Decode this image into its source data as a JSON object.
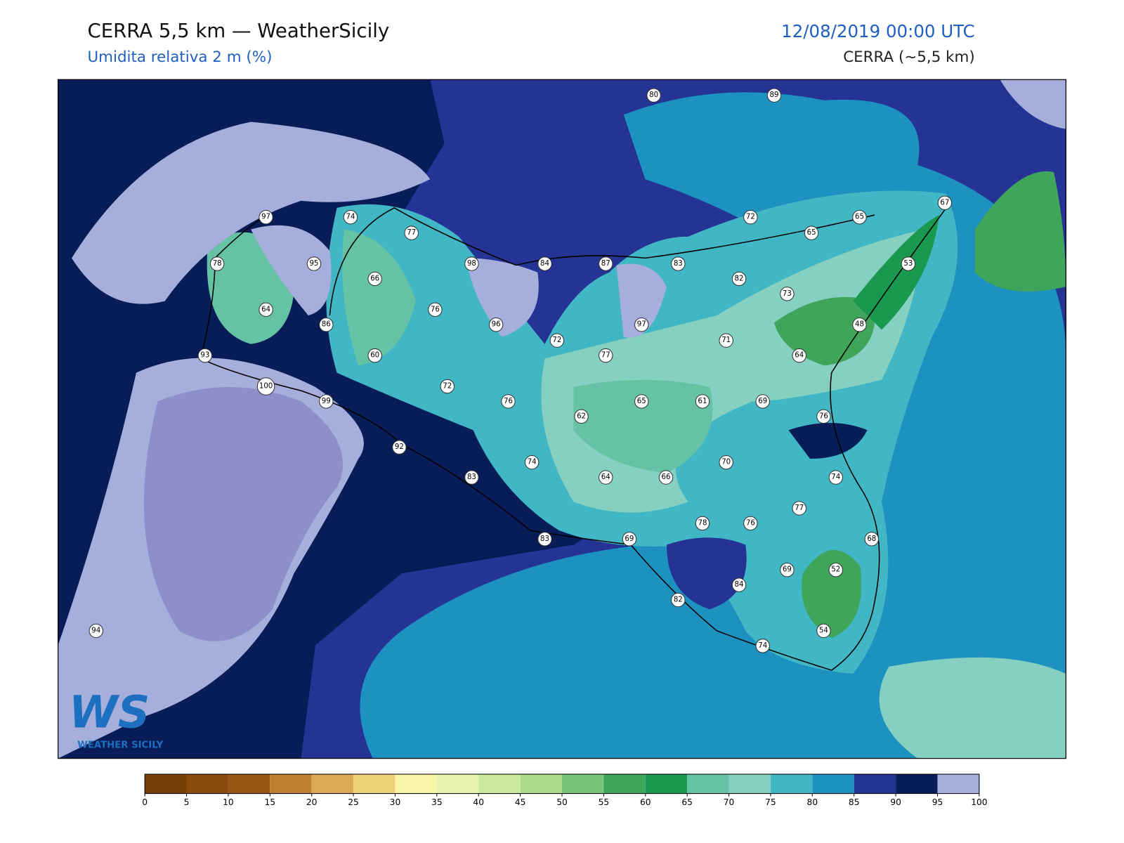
{
  "header": {
    "title": "CERRA 5,5 km — WeatherSicily",
    "subtitle": "Umidita relativa 2 m (%)",
    "date": "12/08/2019 00:00 UTC",
    "model": "CERRA (~5,5 km)"
  },
  "stations": [
    80,
    89,
    97,
    74,
    77,
    72,
    65,
    67,
    65,
    78,
    95,
    66,
    98,
    84,
    87,
    83,
    82,
    53,
    64,
    76,
    96,
    73,
    86,
    72,
    97,
    71,
    48,
    93,
    60,
    77,
    64,
    100,
    72,
    76,
    65,
    61,
    69,
    99,
    62,
    76,
    92,
    74,
    70,
    83,
    64,
    66,
    74,
    77,
    78,
    76,
    83,
    69,
    68,
    69,
    52,
    84,
    82,
    94,
    54,
    74
  ],
  "colorbar": {
    "ticks": [
      0,
      5,
      10,
      15,
      20,
      25,
      30,
      35,
      40,
      45,
      50,
      55,
      60,
      65,
      70,
      75,
      80,
      85,
      90,
      95,
      100
    ],
    "colors": [
      "#77400a",
      "#8a4a0c",
      "#9b5514",
      "#c0802c",
      "#dcaa55",
      "#f0d27a",
      "#f8f4a8",
      "#e6f2b0",
      "#cbe8a0",
      "#a9dc8c",
      "#78c476",
      "#3fa55a",
      "#1a9850",
      "#66c2a4",
      "#85d0c0",
      "#41b6c4",
      "#1d91c0",
      "#253494",
      "#081d58",
      "#a6aedb"
    ]
  },
  "logo": {
    "initials": "WS",
    "name": "WEATHER SICILY"
  }
}
